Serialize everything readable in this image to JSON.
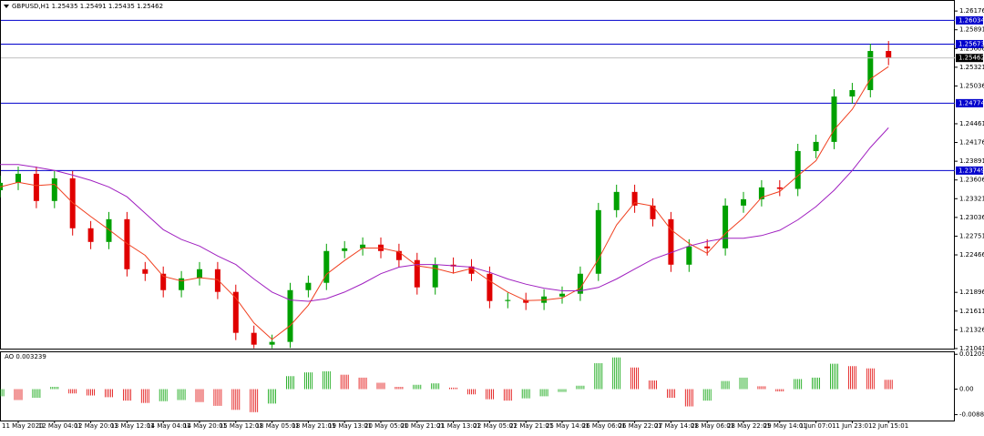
{
  "chart_data": {
    "type": "candlestick",
    "title": "GBPUSD,H1 1.25435 1.25491 1.25435 1.25462",
    "categories": [
      null,
      "11 May 2020",
      null,
      "12 May 04:01",
      null,
      "12 May 20:01",
      null,
      "13 May 12:01",
      null,
      "14 May 04:01",
      null,
      "14 May 20:01",
      null,
      "15 May 12:01",
      null,
      "18 May 05:01",
      null,
      "18 May 21:01",
      null,
      "19 May 13:01",
      null,
      "20 May 05:01",
      null,
      "20 May 21:01",
      null,
      "21 May 13:01",
      null,
      "22 May 05:01",
      null,
      "22 May 21:01",
      null,
      "25 May 14:01",
      null,
      "26 May 06:01",
      null,
      "26 May 22:01",
      null,
      "27 May 14:01",
      null,
      "28 May 06:01",
      null,
      "28 May 22:01",
      null,
      "29 May 14:01",
      null,
      "1 Jun 07:01",
      null,
      "1 Jun 23:01",
      null,
      "2 Jun 15:01"
    ],
    "open": [
      1.2345,
      1.23562,
      1.237,
      1.23286,
      1.23631,
      1.22871,
      1.22663,
      1.23009,
      1.22248,
      1.22179,
      1.2193,
      1.2211,
      1.22248,
      1.21903,
      1.2128,
      1.211,
      1.21142,
      1.2193,
      1.22041,
      1.22525,
      1.22566,
      1.22622,
      1.22525,
      1.22387,
      1.21972,
      1.22317,
      1.2229,
      1.22179,
      1.21764,
      1.2178,
      1.21737,
      1.21833,
      1.21875,
      1.22179,
      1.23147,
      1.23424,
      1.23216,
      1.23009,
      1.22317,
      1.22594,
      1.22566,
      1.23216,
      1.23313,
      1.23493,
      1.2347,
      1.24046,
      1.24185,
      1.24876,
      1.24973,
      1.25568
    ],
    "high": [
      1.23672,
      1.2381,
      1.2381,
      1.23741,
      1.23741,
      1.22981,
      1.23119,
      1.23119,
      1.22358,
      1.22289,
      1.2222,
      1.22358,
      1.22358,
      1.22013,
      1.2139,
      1.21252,
      1.2204,
      1.22151,
      1.22635,
      1.22676,
      1.22732,
      1.22732,
      1.22635,
      1.22497,
      1.22427,
      1.22427,
      1.224,
      1.22289,
      1.2189,
      1.2189,
      1.21943,
      1.21985,
      1.22289,
      1.23257,
      1.23534,
      1.23534,
      1.23326,
      1.23119,
      1.22704,
      1.22704,
      1.23326,
      1.23423,
      1.23603,
      1.23603,
      1.24156,
      1.24295,
      1.24986,
      1.25083,
      1.25678,
      1.2572
    ],
    "low": [
      1.2334,
      1.23452,
      1.23176,
      1.23176,
      1.22761,
      1.22553,
      1.22553,
      1.22138,
      1.22069,
      1.2182,
      1.2182,
      1.22,
      1.21793,
      1.2117,
      1.21045,
      1.21045,
      1.2105,
      1.2182,
      1.21931,
      1.22415,
      1.22456,
      1.22415,
      1.22277,
      1.21862,
      1.21862,
      1.2218,
      1.22069,
      1.21654,
      1.21654,
      1.21627,
      1.21627,
      1.21723,
      1.21765,
      1.22069,
      1.23037,
      1.23106,
      1.22899,
      1.22207,
      1.22207,
      1.22456,
      1.22456,
      1.23106,
      1.23203,
      1.2336,
      1.2336,
      1.23936,
      1.24075,
      1.24766,
      1.24863,
      1.25352
    ],
    "close": [
      1.23562,
      1.237,
      1.23286,
      1.23631,
      1.22871,
      1.22663,
      1.23009,
      1.22248,
      1.22179,
      1.2193,
      1.2211,
      1.22248,
      1.21903,
      1.2128,
      1.211,
      1.21142,
      1.2193,
      1.22041,
      1.22525,
      1.22566,
      1.22622,
      1.22525,
      1.22387,
      1.21972,
      1.22317,
      1.2229,
      1.22179,
      1.21764,
      1.2178,
      1.21737,
      1.21833,
      1.21875,
      1.22179,
      1.23147,
      1.23424,
      1.23216,
      1.23009,
      1.22317,
      1.22594,
      1.22566,
      1.23216,
      1.23313,
      1.23493,
      1.2347,
      1.24046,
      1.24185,
      1.24876,
      1.24973,
      1.25568,
      1.25462
    ],
    "up_color": "#00a000",
    "down_color": "#e00000",
    "series": [
      {
        "color": "#f04020",
        "values": [
          1.235,
          1.2357,
          1.2352,
          1.2354,
          1.2326,
          1.2305,
          1.2285,
          1.2264,
          1.2246,
          1.2214,
          1.2207,
          1.2212,
          1.2209,
          1.2181,
          1.2143,
          1.2118,
          1.2139,
          1.217,
          1.2217,
          1.2238,
          1.2257,
          1.2257,
          1.2251,
          1.223,
          1.2226,
          1.2219,
          1.2226,
          1.2207,
          1.219,
          1.2177,
          1.2178,
          1.2181,
          1.2196,
          1.224,
          1.2292,
          1.2326,
          1.2321,
          1.2285,
          1.2264,
          1.2249,
          1.2279,
          1.2303,
          1.2334,
          1.2343,
          1.2367,
          1.239,
          1.2437,
          1.2468,
          1.2514,
          1.2533
        ]
      },
      {
        "color": "#a020c0",
        "values": [
          1.2384,
          1.2384,
          1.238,
          1.2375,
          1.2368,
          1.236,
          1.235,
          1.2335,
          1.231,
          1.2285,
          1.227,
          1.226,
          1.2245,
          1.2232,
          1.221,
          1.219,
          1.2178,
          1.2176,
          1.218,
          1.219,
          1.2203,
          1.2218,
          1.2228,
          1.2232,
          1.2232,
          1.223,
          1.2228,
          1.222,
          1.221,
          1.2202,
          1.2196,
          1.2192,
          1.2192,
          1.2197,
          1.221,
          1.2225,
          1.224,
          1.225,
          1.226,
          1.2267,
          1.2272,
          1.2272,
          1.2276,
          1.2284,
          1.23,
          1.232,
          1.2345,
          1.2375,
          1.241,
          1.244
        ]
      }
    ],
    "levels": [
      1.26034,
      1.25673,
      1.24774,
      1.23749
    ],
    "level_color": "#0000cc",
    "ylim": [
      1.2104,
      1.2633
    ],
    "yticks": [
      1.26176,
      1.25891,
      1.25606,
      1.25321,
      1.25036,
      1.24461,
      1.24176,
      1.23891,
      1.23606,
      1.23321,
      1.23036,
      1.22751,
      1.22466,
      1.21896,
      1.21611,
      1.21326,
      1.21041
    ],
    "ao_label": "AO 0.003239",
    "ao": {
      "axis": "y2",
      "values": [
        -0.0025,
        -0.0038,
        -0.003,
        0.0008,
        -0.0015,
        -0.0022,
        -0.0028,
        -0.004,
        -0.0048,
        -0.0042,
        -0.0038,
        -0.0045,
        -0.0058,
        -0.0072,
        -0.008,
        -0.005,
        0.0045,
        0.0058,
        0.0062,
        0.005,
        0.004,
        0.0022,
        0.0008,
        0.0015,
        0.002,
        0.0005,
        -0.0018,
        -0.0035,
        -0.004,
        -0.0032,
        -0.0025,
        -0.001,
        0.0012,
        0.009,
        0.011,
        0.0075,
        0.003,
        -0.003,
        -0.006,
        -0.004,
        0.0028,
        0.004,
        0.001,
        -0.0008,
        0.0035,
        0.004,
        0.0088,
        0.008,
        0.0072,
        0.003239
      ]
    },
    "y2lim": [
      -0.0109,
      0.0128
    ],
    "y2ticks": [
      0.01209,
      {
        "value": 0,
        "label": "0.00"
      },
      -0.00886
    ]
  }
}
